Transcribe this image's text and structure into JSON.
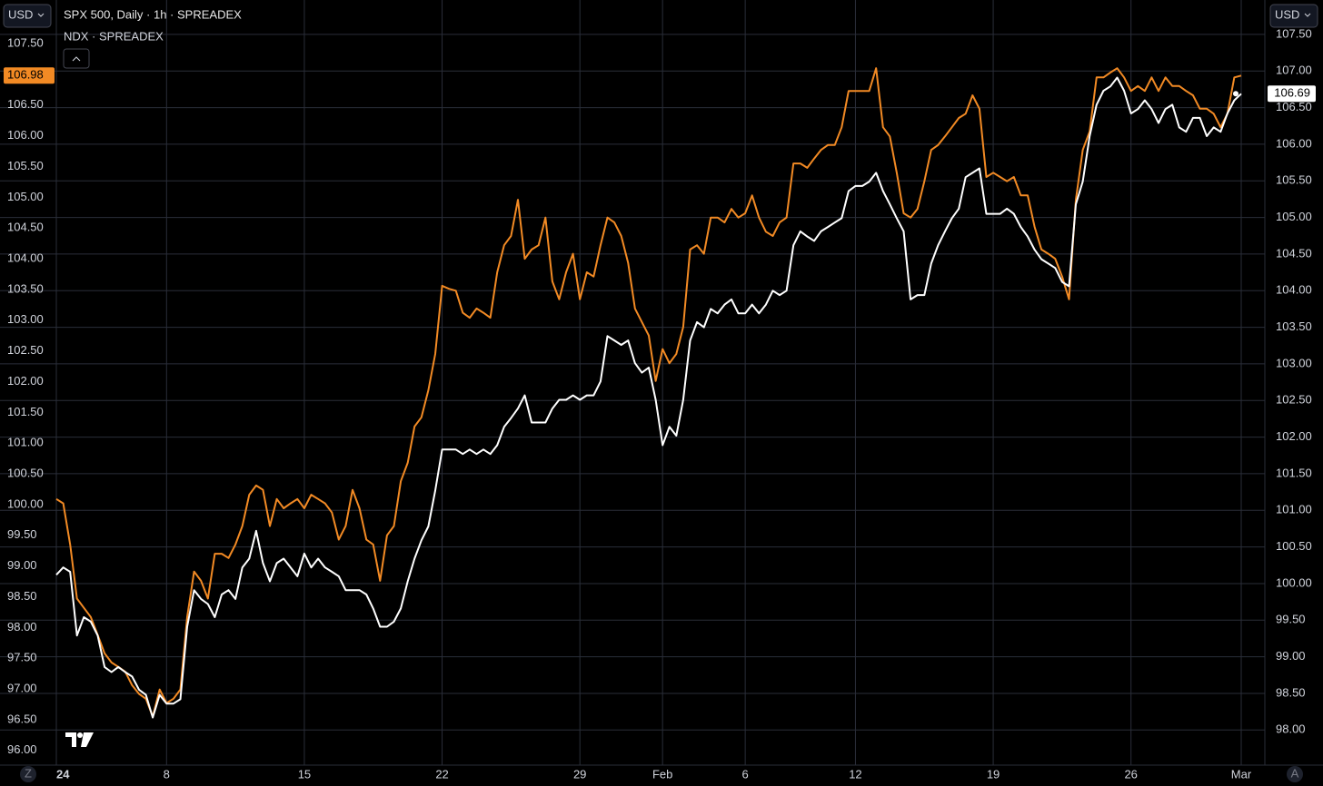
{
  "chart_data": {
    "type": "line",
    "title": "SPX 500, Daily · 1h · SPREADEX",
    "subtitle": "NDX · SPREADEX",
    "currency": "USD",
    "scale_buttons": [
      "Z",
      "A"
    ],
    "grid": true,
    "categories": [
      "24",
      null,
      null,
      null,
      null,
      null,
      null,
      null,
      null,
      null,
      null,
      null,
      null,
      null,
      null,
      null,
      "8",
      null,
      null,
      null,
      null,
      null,
      null,
      null,
      null,
      null,
      null,
      null,
      null,
      null,
      null,
      null,
      null,
      null,
      null,
      null,
      "15",
      null,
      null,
      null,
      null,
      null,
      null,
      null,
      null,
      null,
      null,
      null,
      null,
      null,
      null,
      null,
      null,
      null,
      null,
      null,
      "22",
      null,
      null,
      null,
      null,
      null,
      null,
      null,
      null,
      null,
      null,
      null,
      null,
      null,
      null,
      null,
      null,
      null,
      null,
      null,
      "29",
      null,
      null,
      null,
      null,
      null,
      null,
      null,
      null,
      null,
      null,
      null,
      "Feb",
      null,
      null,
      null,
      null,
      null,
      null,
      null,
      null,
      null,
      null,
      null,
      "6",
      null,
      null,
      null,
      null,
      null,
      null,
      null,
      null,
      null,
      null,
      null,
      null,
      null,
      null,
      null,
      "12",
      null,
      null,
      null,
      null,
      null,
      null,
      null,
      null,
      null,
      null,
      null,
      null,
      null,
      null,
      null,
      null,
      null,
      null,
      null,
      "19",
      null,
      null,
      null,
      null,
      null,
      null,
      null,
      null,
      null,
      null,
      null,
      null,
      null,
      null,
      null,
      null,
      null,
      null,
      null,
      "26",
      null,
      null,
      null,
      null,
      null,
      null,
      null,
      null,
      null,
      null,
      null,
      null,
      null,
      null,
      null,
      "Mar"
    ],
    "series": [
      {
        "color": "#f28a24",
        "axis": "y",
        "values": [
          100.09,
          100.02,
          99.35,
          98.47,
          98.32,
          98.17,
          97.88,
          97.58,
          97.43,
          97.36,
          97.28,
          97.06,
          96.92,
          96.84,
          96.55,
          96.99,
          96.77,
          96.84,
          96.99,
          98.17,
          98.91,
          98.76,
          98.47,
          99.2,
          99.2,
          99.13,
          99.35,
          99.65,
          100.16,
          100.31,
          100.24,
          99.65,
          100.09,
          99.94,
          100.02,
          100.09,
          99.94,
          100.16,
          100.09,
          100.02,
          99.87,
          99.43,
          99.65,
          100.24,
          99.94,
          99.43,
          99.35,
          98.76,
          99.5,
          99.65,
          100.38,
          100.68,
          101.27,
          101.42,
          101.86,
          102.45,
          103.56,
          103.51,
          103.48,
          103.12,
          103.04,
          103.19,
          103.12,
          103.04,
          103.78,
          104.22,
          104.37,
          104.96,
          104.0,
          104.15,
          104.22,
          104.67,
          103.63,
          103.34,
          103.78,
          104.08,
          103.34,
          103.78,
          103.71,
          104.22,
          104.67,
          104.59,
          104.37,
          103.93,
          103.19,
          102.97,
          102.75,
          102.01,
          102.53,
          102.3,
          102.45,
          102.89,
          104.15,
          104.22,
          104.08,
          104.67,
          104.67,
          104.59,
          104.81,
          104.67,
          104.74,
          105.03,
          104.67,
          104.44,
          104.37,
          104.59,
          104.67,
          105.55,
          105.55,
          105.48,
          105.63,
          105.77,
          105.85,
          105.85,
          106.14,
          106.73,
          106.73,
          106.73,
          106.73,
          107.1,
          106.14,
          105.99,
          105.4,
          104.74,
          104.67,
          104.81,
          105.26,
          105.77,
          105.85,
          105.99,
          106.14,
          106.29,
          106.36,
          106.66,
          106.44,
          105.33,
          105.4,
          105.33,
          105.26,
          105.33,
          105.03,
          105.03,
          104.52,
          104.15,
          104.08,
          104.0,
          103.71,
          103.34,
          104.96,
          105.77,
          106.07,
          106.95,
          106.95,
          107.03,
          107.1,
          106.95,
          106.73,
          106.81,
          106.73,
          106.95,
          106.73,
          106.95,
          106.81,
          106.81,
          106.73,
          106.66,
          106.44,
          106.44,
          106.36,
          106.14,
          106.36,
          106.95,
          106.98
        ]
      },
      {
        "color": "#ffffff",
        "axis": "y2",
        "values": [
          100.12,
          100.22,
          100.16,
          99.29,
          99.54,
          99.48,
          99.29,
          98.86,
          98.79,
          98.86,
          98.79,
          98.73,
          98.55,
          98.48,
          98.17,
          98.48,
          98.36,
          98.36,
          98.42,
          99.41,
          99.91,
          99.79,
          99.72,
          99.54,
          99.85,
          99.91,
          99.79,
          100.22,
          100.34,
          100.72,
          100.28,
          100.03,
          100.28,
          100.34,
          100.22,
          100.1,
          100.41,
          100.22,
          100.34,
          100.22,
          100.16,
          100.1,
          99.91,
          99.91,
          99.91,
          99.85,
          99.66,
          99.41,
          99.41,
          99.48,
          99.66,
          100.03,
          100.34,
          100.59,
          100.78,
          101.27,
          101.83,
          101.83,
          101.83,
          101.77,
          101.83,
          101.77,
          101.83,
          101.77,
          101.89,
          102.14,
          102.26,
          102.39,
          102.57,
          102.2,
          102.2,
          102.2,
          102.39,
          102.51,
          102.51,
          102.57,
          102.51,
          102.57,
          102.57,
          102.76,
          103.38,
          103.32,
          103.26,
          103.32,
          103.01,
          102.88,
          102.95,
          102.51,
          101.89,
          102.14,
          102.02,
          102.51,
          103.32,
          103.57,
          103.5,
          103.75,
          103.69,
          103.81,
          103.88,
          103.69,
          103.69,
          103.81,
          103.69,
          103.81,
          104.0,
          103.94,
          104.0,
          104.62,
          104.81,
          104.74,
          104.68,
          104.81,
          104.87,
          104.93,
          104.99,
          105.36,
          105.43,
          105.43,
          105.49,
          105.61,
          105.36,
          105.18,
          104.99,
          104.81,
          103.88,
          103.94,
          103.94,
          104.37,
          104.62,
          104.81,
          104.99,
          105.12,
          105.55,
          105.61,
          105.67,
          105.05,
          105.05,
          105.05,
          105.12,
          105.05,
          104.87,
          104.74,
          104.56,
          104.43,
          104.37,
          104.31,
          104.12,
          104.06,
          105.18,
          105.49,
          106.11,
          106.54,
          106.73,
          106.79,
          106.91,
          106.73,
          106.42,
          106.48,
          106.6,
          106.48,
          106.29,
          106.48,
          106.54,
          106.23,
          106.17,
          106.36,
          106.36,
          106.11,
          106.23,
          106.17,
          106.42,
          106.6,
          106.69
        ]
      }
    ],
    "ylim": [
      95.76,
      108.21
    ],
    "yticks": [
      {
        "value": 96,
        "label": "96.00"
      },
      {
        "value": 96.5,
        "label": "96.50"
      },
      {
        "value": 97,
        "label": "97.00"
      },
      {
        "value": 97.5,
        "label": "97.50"
      },
      {
        "value": 98,
        "label": "98.00"
      },
      {
        "value": 98.5,
        "label": "98.50"
      },
      {
        "value": 99,
        "label": "99.00"
      },
      {
        "value": 99.5,
        "label": "99.50"
      },
      {
        "value": 100,
        "label": "100.00"
      },
      {
        "value": 100.5,
        "label": "100.50"
      },
      {
        "value": 101,
        "label": "101.00"
      },
      {
        "value": 101.5,
        "label": "101.50"
      },
      {
        "value": 102,
        "label": "102.00"
      },
      {
        "value": 102.5,
        "label": "102.50"
      },
      {
        "value": 103,
        "label": "103.00"
      },
      {
        "value": 103.5,
        "label": "103.50"
      },
      {
        "value": 104,
        "label": "104.00"
      },
      {
        "value": 104.5,
        "label": "104.50"
      },
      {
        "value": 105,
        "label": "105.00"
      },
      {
        "value": 105.5,
        "label": "105.50"
      },
      {
        "value": 106,
        "label": "106.00"
      },
      {
        "value": 106.5,
        "label": "106.50"
      },
      {
        "value": 107,
        "label": "107.00"
      },
      {
        "value": 107.5,
        "label": "107.50"
      }
    ],
    "y2lim": [
      97.52,
      107.97
    ],
    "y2ticks": [
      {
        "value": 98,
        "label": "98.00"
      },
      {
        "value": 98.5,
        "label": "98.50"
      },
      {
        "value": 99,
        "label": "99.00"
      },
      {
        "value": 99.5,
        "label": "99.50"
      },
      {
        "value": 100,
        "label": "100.00"
      },
      {
        "value": 100.5,
        "label": "100.50"
      },
      {
        "value": 101,
        "label": "101.00"
      },
      {
        "value": 101.5,
        "label": "101.50"
      },
      {
        "value": 102,
        "label": "102.00"
      },
      {
        "value": 102.5,
        "label": "102.50"
      },
      {
        "value": 103,
        "label": "103.00"
      },
      {
        "value": 103.5,
        "label": "103.50"
      },
      {
        "value": 104,
        "label": "104.00"
      },
      {
        "value": 104.5,
        "label": "104.50"
      },
      {
        "value": 105,
        "label": "105.00"
      },
      {
        "value": 105.5,
        "label": "105.50"
      },
      {
        "value": 106,
        "label": "106.00"
      },
      {
        "value": 106.5,
        "label": "106.50"
      },
      {
        "value": 107,
        "label": "107.00"
      },
      {
        "value": 107.5,
        "label": "107.50"
      }
    ]
  }
}
